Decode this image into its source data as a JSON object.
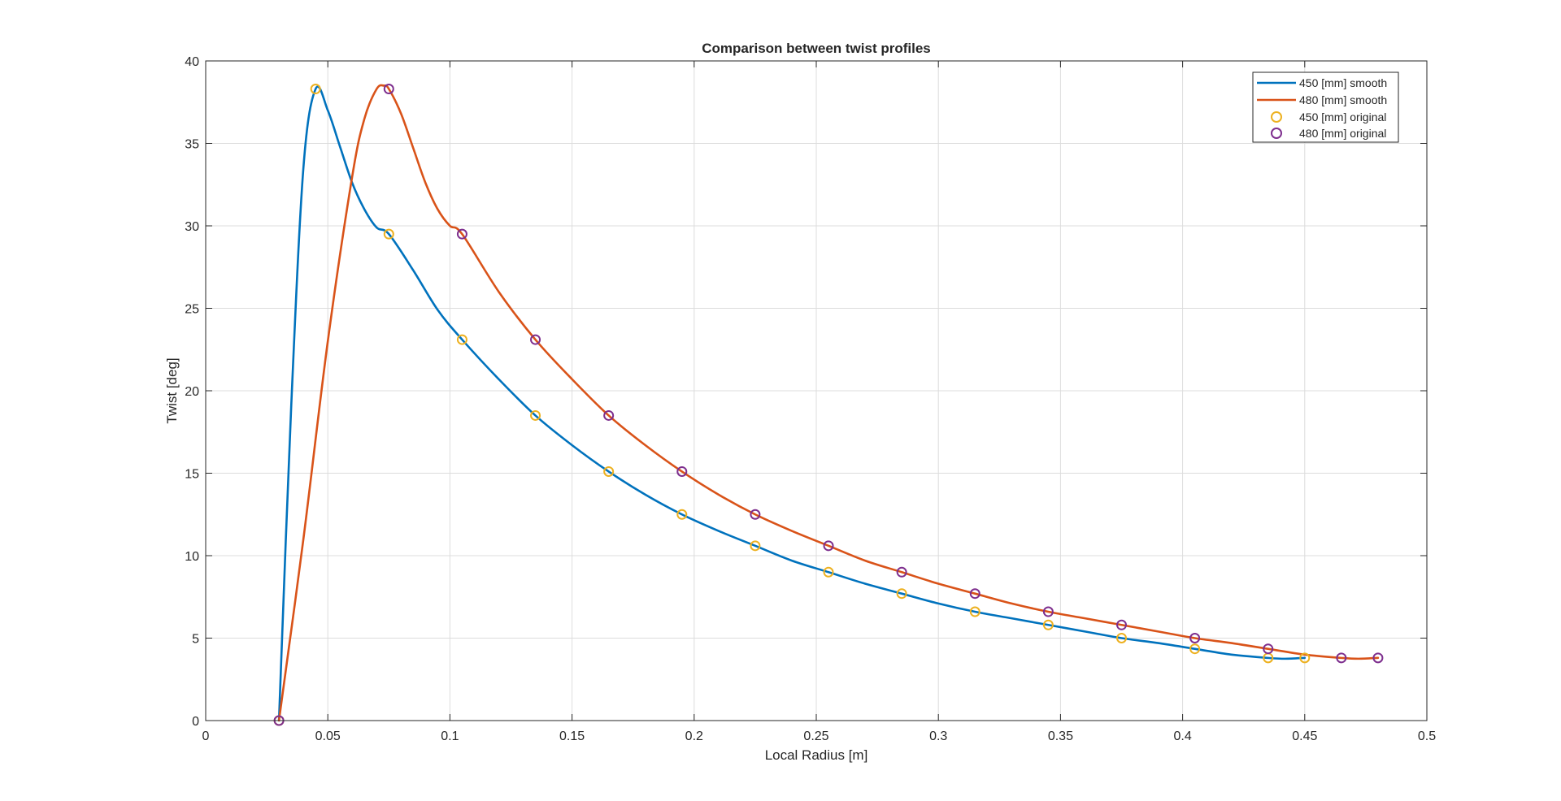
{
  "chart_data": {
    "type": "line",
    "title": "Comparison between twist profiles",
    "xlabel": "Local Radius [m]",
    "ylabel": "Twist [deg]",
    "xlim": [
      0,
      0.5
    ],
    "ylim": [
      0,
      40
    ],
    "xticks": [
      0,
      0.05,
      0.1,
      0.15,
      0.2,
      0.25,
      0.3,
      0.35,
      0.4,
      0.45,
      0.5
    ],
    "xtick_labels": [
      "0",
      "0.05",
      "0.1",
      "0.15",
      "0.2",
      "0.25",
      "0.3",
      "0.35",
      "0.4",
      "0.45",
      "0.5"
    ],
    "yticks": [
      0,
      5,
      10,
      15,
      20,
      25,
      30,
      35,
      40
    ],
    "ytick_labels": [
      "0",
      "5",
      "10",
      "15",
      "20",
      "25",
      "30",
      "35",
      "40"
    ],
    "grid": true,
    "legend_position": "top-right",
    "series": [
      {
        "name": "450 [mm] smooth",
        "kind": "line",
        "color": "#0072BD",
        "x": [
          0.03,
          0.035,
          0.04,
          0.045,
          0.05,
          0.055,
          0.06,
          0.065,
          0.07,
          0.075,
          0.085,
          0.095,
          0.105,
          0.12,
          0.135,
          0.15,
          0.165,
          0.18,
          0.195,
          0.21,
          0.225,
          0.24,
          0.255,
          0.27,
          0.285,
          0.3,
          0.315,
          0.33,
          0.345,
          0.36,
          0.375,
          0.39,
          0.405,
          0.42,
          0.435,
          0.442,
          0.45
        ],
        "y": [
          0,
          19,
          33.5,
          38.3,
          37.0,
          34.8,
          32.6,
          31.0,
          29.9,
          29.5,
          27.3,
          24.9,
          23.1,
          20.7,
          18.5,
          16.7,
          15.1,
          13.7,
          12.5,
          11.5,
          10.6,
          9.7,
          9.0,
          8.3,
          7.7,
          7.1,
          6.6,
          6.2,
          5.8,
          5.4,
          5.0,
          4.7,
          4.35,
          4.0,
          3.8,
          3.75,
          3.8
        ]
      },
      {
        "name": "480 [mm] smooth",
        "kind": "line",
        "color": "#D95319",
        "x": [
          0.03,
          0.04,
          0.05,
          0.06,
          0.065,
          0.07,
          0.073,
          0.075,
          0.08,
          0.085,
          0.09,
          0.095,
          0.1,
          0.105,
          0.12,
          0.135,
          0.15,
          0.165,
          0.18,
          0.195,
          0.21,
          0.225,
          0.24,
          0.255,
          0.27,
          0.285,
          0.3,
          0.315,
          0.33,
          0.345,
          0.36,
          0.375,
          0.39,
          0.405,
          0.42,
          0.435,
          0.45,
          0.465,
          0.472,
          0.48
        ],
        "y": [
          0,
          11,
          23,
          33,
          36.5,
          38.3,
          38.5,
          38.3,
          36.8,
          34.7,
          32.6,
          31.0,
          30.0,
          29.5,
          26.0,
          23.1,
          20.7,
          18.5,
          16.7,
          15.1,
          13.7,
          12.5,
          11.5,
          10.6,
          9.7,
          9.0,
          8.3,
          7.7,
          7.1,
          6.6,
          6.2,
          5.8,
          5.4,
          5.0,
          4.7,
          4.35,
          4.0,
          3.8,
          3.75,
          3.8
        ]
      },
      {
        "name": "450 [mm] original",
        "kind": "markers",
        "color": "#EDB120",
        "x": [
          0.03,
          0.045,
          0.075,
          0.105,
          0.135,
          0.165,
          0.195,
          0.225,
          0.255,
          0.285,
          0.315,
          0.345,
          0.375,
          0.405,
          0.435,
          0.45
        ],
        "y": [
          0,
          38.3,
          29.5,
          23.1,
          18.5,
          15.1,
          12.5,
          10.6,
          9.0,
          7.7,
          6.6,
          5.8,
          5.0,
          4.35,
          3.8,
          3.8
        ]
      },
      {
        "name": "480 [mm] original",
        "kind": "markers",
        "color": "#7E2F8E",
        "x": [
          0.03,
          0.075,
          0.105,
          0.135,
          0.165,
          0.195,
          0.225,
          0.255,
          0.285,
          0.315,
          0.345,
          0.375,
          0.405,
          0.435,
          0.465,
          0.48
        ],
        "y": [
          0,
          38.3,
          29.5,
          23.1,
          18.5,
          15.1,
          12.5,
          10.6,
          9.0,
          7.7,
          6.6,
          5.8,
          5.0,
          4.35,
          3.8,
          3.8
        ]
      }
    ]
  }
}
